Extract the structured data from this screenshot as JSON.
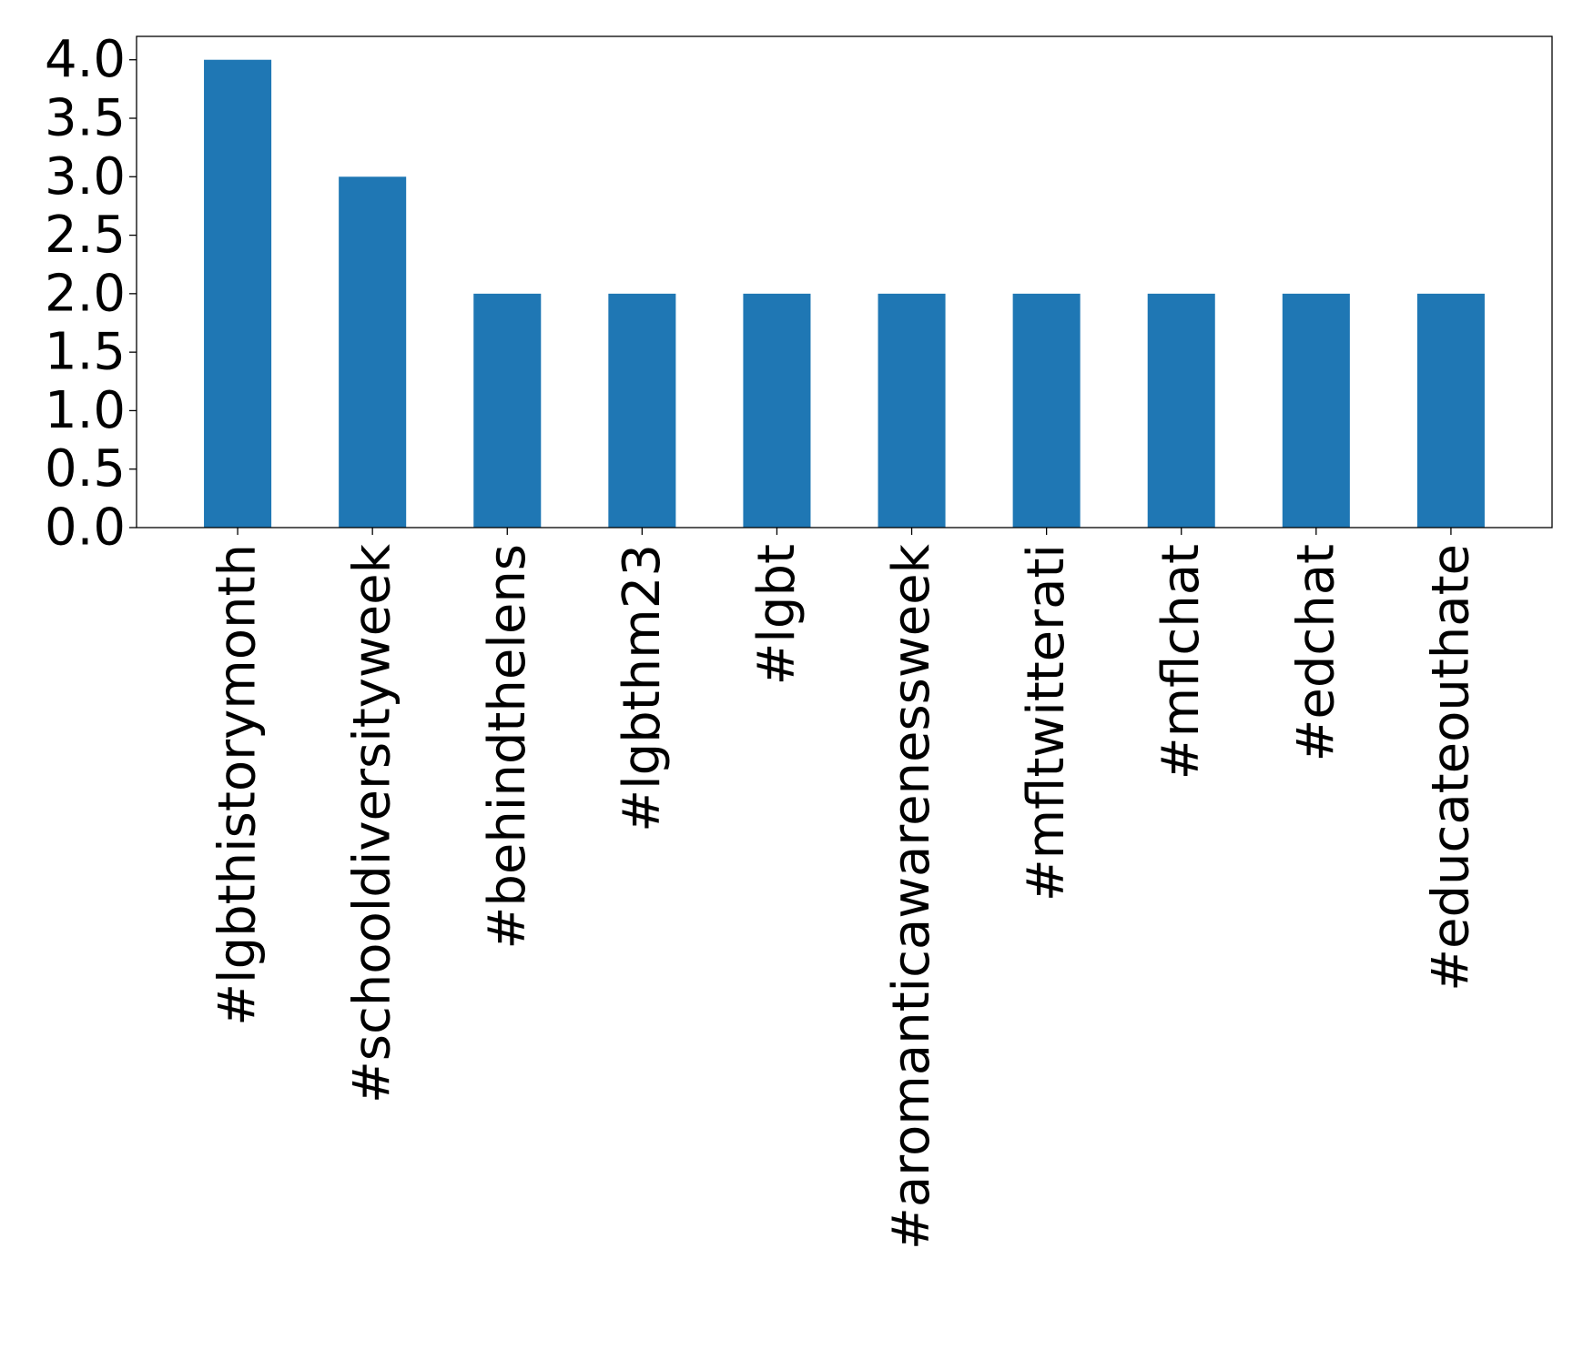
{
  "chart_data": {
    "type": "bar",
    "title": "",
    "xlabel": "",
    "ylabel": "",
    "categories": [
      "#lgbthistorymonth",
      "#schooldiversityweek",
      "#behindthelens",
      "#lgbthm23",
      "#lgbt",
      "#aromanticawarenessweek",
      "#mfltwitterati",
      "#mflchat",
      "#edchat",
      "#educateouthate"
    ],
    "values": [
      4,
      3,
      2,
      2,
      2,
      2,
      2,
      2,
      2,
      2
    ],
    "ylim": [
      0,
      4.2
    ],
    "yticks": [
      "0.0",
      "0.5",
      "1.0",
      "1.5",
      "2.0",
      "2.5",
      "3.0",
      "3.5",
      "4.0"
    ],
    "bar_color": "#1f77b4",
    "grid": false,
    "legend": "none"
  }
}
